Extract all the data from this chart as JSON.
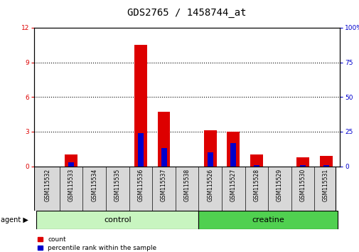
{
  "title": "GDS2765 / 1458744_at",
  "samples": [
    "GSM115532",
    "GSM115533",
    "GSM115534",
    "GSM115535",
    "GSM115536",
    "GSM115537",
    "GSM115538",
    "GSM115526",
    "GSM115527",
    "GSM115528",
    "GSM115529",
    "GSM115530",
    "GSM115531"
  ],
  "count_values": [
    0,
    1.0,
    0,
    0,
    10.5,
    4.7,
    0,
    3.1,
    3.0,
    1.0,
    0,
    0.8,
    0.9
  ],
  "percentile_values": [
    0,
    3,
    0,
    0,
    24,
    13,
    0,
    10,
    17,
    1,
    0,
    1,
    1
  ],
  "groups": [
    {
      "label": "control",
      "color": "#c8f5c0",
      "dark_color": "#50c850",
      "start": 0,
      "end": 7
    },
    {
      "label": "creatine",
      "color": "#50d050",
      "dark_color": "#30a830",
      "start": 7,
      "end": 13
    }
  ],
  "ylim_left": [
    0,
    12
  ],
  "ylim_right": [
    0,
    100
  ],
  "yticks_left": [
    0,
    3,
    6,
    9,
    12
  ],
  "yticks_right": [
    0,
    25,
    50,
    75,
    100
  ],
  "bar_color_count": "#dd0000",
  "bar_color_pct": "#0000cc",
  "background_color": "#ffffff",
  "grid_color": "#000000",
  "agent_label": "agent",
  "legend_count": "count",
  "legend_pct": "percentile rank within the sample",
  "title_fontsize": 10,
  "tick_fontsize": 6.5,
  "label_fontsize": 8,
  "sample_fontsize": 5.5
}
